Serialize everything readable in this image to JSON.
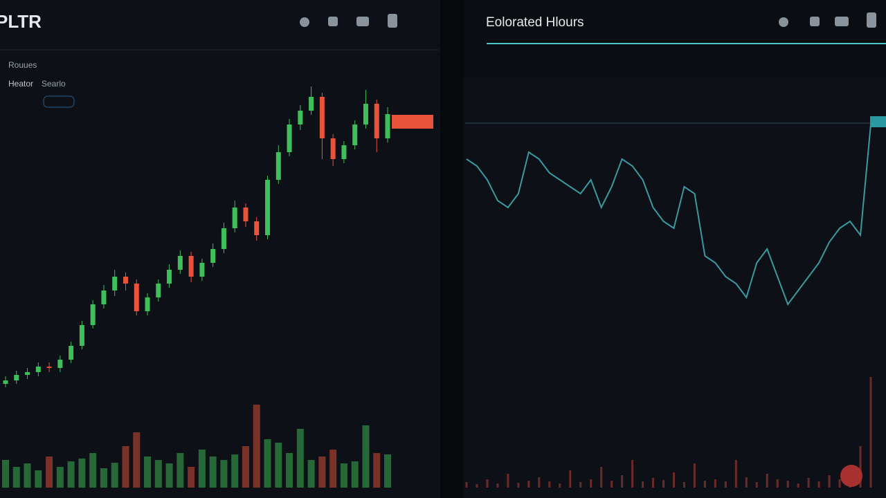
{
  "header": {
    "symbol": "PLTR",
    "tabs": [
      "Rouues",
      "Heator",
      "Searlo"
    ]
  },
  "right_header": {
    "title": "Eolorated Hlours"
  },
  "chart_data": [
    {
      "type": "candlestick",
      "up_color": "#3fbf5a",
      "down_color": "#e8533a",
      "ylim": [
        0,
        620
      ],
      "volume_ylim": [
        0,
        130
      ],
      "candles": [
        [
          145,
          156,
          140,
          150
        ],
        [
          150,
          164,
          145,
          158
        ],
        [
          158,
          168,
          152,
          162
        ],
        [
          162,
          176,
          156,
          170
        ],
        [
          170,
          176,
          162,
          168
        ],
        [
          168,
          186,
          162,
          180
        ],
        [
          180,
          206,
          175,
          200
        ],
        [
          200,
          236,
          195,
          230
        ],
        [
          230,
          266,
          225,
          260
        ],
        [
          260,
          288,
          254,
          280
        ],
        [
          280,
          310,
          272,
          300
        ],
        [
          300,
          306,
          280,
          290
        ],
        [
          290,
          296,
          244,
          250
        ],
        [
          250,
          276,
          244,
          270
        ],
        [
          270,
          296,
          264,
          290
        ],
        [
          290,
          318,
          284,
          310
        ],
        [
          310,
          338,
          304,
          330
        ],
        [
          330,
          336,
          292,
          300
        ],
        [
          300,
          326,
          294,
          320
        ],
        [
          320,
          348,
          314,
          340
        ],
        [
          340,
          378,
          334,
          370
        ],
        [
          370,
          410,
          364,
          400
        ],
        [
          400,
          406,
          372,
          380
        ],
        [
          380,
          386,
          352,
          360
        ],
        [
          360,
          446,
          354,
          440
        ],
        [
          440,
          490,
          434,
          480
        ],
        [
          480,
          528,
          474,
          520
        ],
        [
          520,
          548,
          512,
          540
        ],
        [
          540,
          575,
          534,
          560
        ],
        [
          560,
          566,
          470,
          500
        ],
        [
          500,
          506,
          460,
          470
        ],
        [
          470,
          496,
          464,
          490
        ],
        [
          490,
          526,
          484,
          520
        ],
        [
          520,
          570,
          514,
          550
        ],
        [
          550,
          556,
          480,
          500
        ],
        [
          500,
          545,
          494,
          535
        ]
      ],
      "volumes": [
        40,
        30,
        35,
        25,
        45,
        30,
        38,
        42,
        50,
        28,
        36,
        60,
        80,
        45,
        40,
        35,
        50,
        30,
        55,
        45,
        40,
        48,
        60,
        120,
        70,
        65,
        50,
        85,
        40,
        45,
        55,
        35,
        38,
        90,
        50,
        48
      ]
    },
    {
      "type": "line",
      "color": "#3a9aa0",
      "volume_color": "#6b2a2a",
      "ylim": [
        0,
        620
      ],
      "volume_ylim": [
        0,
        130
      ],
      "values": [
        470,
        460,
        440,
        410,
        400,
        420,
        480,
        470,
        450,
        440,
        430,
        420,
        440,
        400,
        430,
        470,
        460,
        440,
        400,
        380,
        370,
        430,
        420,
        330,
        320,
        300,
        290,
        270,
        320,
        340,
        300,
        260,
        280,
        300,
        320,
        350,
        370,
        380,
        360,
        520
      ],
      "volumes": [
        8,
        5,
        12,
        6,
        20,
        7,
        10,
        15,
        9,
        6,
        25,
        8,
        12,
        30,
        10,
        18,
        40,
        9,
        14,
        11,
        22,
        8,
        35,
        10,
        12,
        9,
        40,
        15,
        8,
        20,
        12,
        10,
        6,
        14,
        9,
        18,
        12,
        20,
        60,
        160
      ]
    }
  ]
}
